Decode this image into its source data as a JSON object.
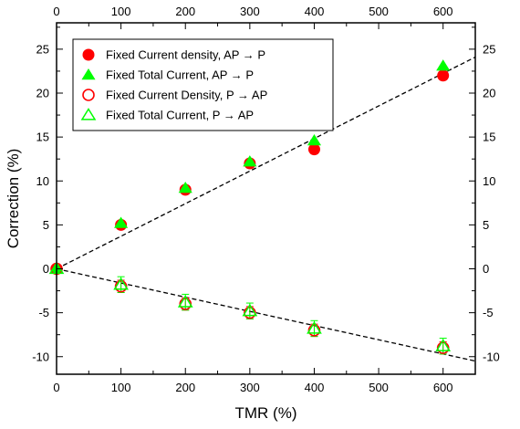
{
  "chart_data": {
    "type": "scatter",
    "xlabel": "TMR (%)",
    "ylabel": "Correction (%)",
    "xlim": [
      0,
      650
    ],
    "ylim": [
      -12,
      28
    ],
    "xticks": [
      0,
      100,
      200,
      300,
      400,
      500,
      600
    ],
    "yticks": [
      -10,
      -5,
      0,
      5,
      10,
      15,
      20,
      25
    ],
    "x_tick_labels": [
      "0",
      "100",
      "200",
      "300",
      "400",
      "500",
      "600"
    ],
    "y_tick_labels": [
      "-10",
      "-5",
      "0",
      "5",
      "10",
      "15",
      "20",
      "25"
    ],
    "top_axis_mirrored": true,
    "right_axis_mirrored": true,
    "grid": false,
    "legend_position": "top-left",
    "series": [
      {
        "name": "Fixed Current density, AP → P",
        "marker": "circle",
        "fill": "filled",
        "color": "#ff0000",
        "x": [
          0,
          100,
          200,
          300,
          400,
          600
        ],
        "y": [
          0,
          5.0,
          9.0,
          12.0,
          13.6,
          22.0
        ]
      },
      {
        "name": "Fixed Total Current, AP → P",
        "marker": "triangle",
        "fill": "filled",
        "color": "#00ff00",
        "x": [
          0,
          100,
          200,
          300,
          400,
          600
        ],
        "y": [
          0,
          5.2,
          9.2,
          12.2,
          14.6,
          23.1
        ]
      },
      {
        "name": "Fixed Current Density, P → AP",
        "marker": "circle",
        "fill": "open",
        "color": "#ff0000",
        "x": [
          0,
          100,
          200,
          300,
          400,
          600
        ],
        "y": [
          0,
          -2.0,
          -4.0,
          -5.0,
          -7.0,
          -9.0
        ],
        "errors": [
          0,
          0.7,
          0.7,
          0.7,
          0.7,
          0.7
        ]
      },
      {
        "name": "Fixed Total Current, P → AP",
        "marker": "triangle",
        "fill": "open",
        "color": "#00ff00",
        "x": [
          0,
          100,
          200,
          300,
          400,
          600
        ],
        "y": [
          0,
          -1.8,
          -3.8,
          -4.8,
          -6.8,
          -8.8
        ],
        "errors": [
          0,
          0.9,
          0.9,
          0.9,
          0.9,
          0.9
        ]
      }
    ],
    "fit_lines": [
      {
        "style": "dashed",
        "color": "#000000",
        "x": [
          0,
          650
        ],
        "y": [
          0,
          24.1
        ]
      },
      {
        "style": "dashed",
        "color": "#000000",
        "x": [
          0,
          650
        ],
        "y": [
          0,
          -10.5
        ]
      }
    ]
  }
}
